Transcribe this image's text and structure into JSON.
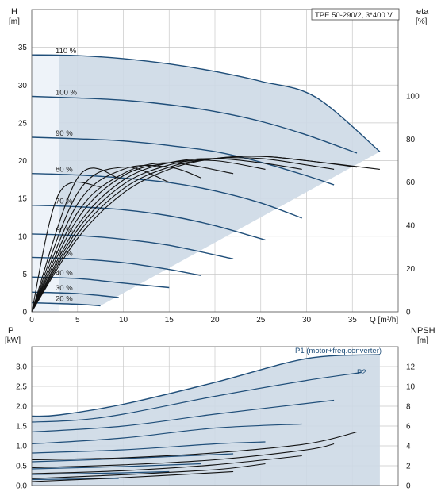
{
  "chart_data": [
    {
      "type": "line",
      "panel": "head",
      "title_box": "TPE 50-290/2, 3*400 V",
      "ylabel": "H",
      "ylabel_unit": "[m]",
      "ylabel_right": "eta",
      "ylabel_right_unit": "[%]",
      "xlabel": "Q [m³/h]",
      "xlim": [
        0,
        40
      ],
      "ylim": [
        0,
        40
      ],
      "ylim_right": [
        0,
        140
      ],
      "x_ticks": [
        "0",
        "5",
        "10",
        "15",
        "20",
        "25",
        "30",
        "35"
      ],
      "y_ticks": [
        "0",
        "5",
        "10",
        "15",
        "20",
        "25",
        "30",
        "35"
      ],
      "y_right_ticks": [
        "0",
        "20",
        "40",
        "60",
        "80",
        "100"
      ],
      "grid": true,
      "envelope_color": "#cdd9e6",
      "curve_color": "#1f4e79",
      "series": [
        {
          "name": "110 %",
          "x": [
            0,
            5,
            10,
            15,
            20,
            25,
            31,
            38
          ],
          "y": [
            34,
            33.9,
            33.5,
            32.8,
            31.8,
            30.5,
            28.4,
            21.2
          ]
        },
        {
          "name": "100 %",
          "x": [
            0,
            5,
            10,
            15,
            20,
            25,
            30,
            35.5
          ],
          "y": [
            28.5,
            28.3,
            28,
            27.4,
            26.5,
            25.2,
            23.4,
            21
          ]
        },
        {
          "name": "90 %",
          "x": [
            0,
            5,
            10,
            15,
            20,
            25,
            30,
            33
          ],
          "y": [
            23.1,
            22.9,
            22.6,
            22,
            21.2,
            19.8,
            18,
            16.8
          ]
        },
        {
          "name": "80 %",
          "x": [
            0,
            5,
            10,
            15,
            20,
            25,
            29.5
          ],
          "y": [
            18.3,
            18.1,
            17.7,
            17.1,
            16,
            14.4,
            12.4
          ]
        },
        {
          "name": "70 %",
          "x": [
            0,
            5,
            10,
            15,
            20,
            25.5
          ],
          "y": [
            14.1,
            13.9,
            13.5,
            12.7,
            11.4,
            9.5
          ]
        },
        {
          "name": "60 %",
          "x": [
            0,
            5,
            10,
            15,
            22
          ],
          "y": [
            10.3,
            10.1,
            9.6,
            8.8,
            7
          ]
        },
        {
          "name": "50 %",
          "x": [
            0,
            5,
            10,
            15,
            18.5
          ],
          "y": [
            7.2,
            7,
            6.5,
            5.6,
            4.8
          ]
        },
        {
          "name": "40 %",
          "x": [
            0,
            5,
            10,
            15
          ],
          "y": [
            4.6,
            4.4,
            3.8,
            3.2
          ]
        },
        {
          "name": "30 %",
          "x": [
            0,
            5,
            9.5
          ],
          "y": [
            2.6,
            2.4,
            1.9
          ]
        },
        {
          "name": "20 %",
          "x": [
            0,
            5,
            7.5
          ],
          "y": [
            1.2,
            1,
            0.8
          ]
        }
      ],
      "efficiency_curves_eta_percent": [
        {
          "x": [
            0,
            5,
            10,
            15,
            20,
            25,
            30,
            38
          ],
          "y": [
            0,
            34,
            55,
            66,
            71,
            72,
            70,
            66
          ]
        },
        {
          "x": [
            0,
            5,
            10,
            15,
            20,
            25,
            30,
            35.5
          ],
          "y": [
            0,
            36,
            57,
            67,
            71,
            72,
            70,
            67
          ]
        },
        {
          "x": [
            0,
            5,
            10,
            15,
            20,
            25,
            30,
            33
          ],
          "y": [
            0,
            38,
            59,
            68,
            71,
            71,
            68,
            66
          ]
        },
        {
          "x": [
            0,
            5,
            10,
            15,
            20,
            25,
            29.5
          ],
          "y": [
            0,
            40,
            61,
            69,
            71,
            69,
            66
          ]
        },
        {
          "x": [
            0,
            5,
            10,
            15,
            20,
            25.5
          ],
          "y": [
            0,
            43,
            63,
            69,
            70,
            66
          ]
        },
        {
          "x": [
            0,
            5,
            10,
            15,
            22
          ],
          "y": [
            0,
            46,
            64,
            69,
            64
          ]
        },
        {
          "x": [
            0,
            5,
            10,
            15,
            18.5
          ],
          "y": [
            0,
            50,
            66,
            67,
            62
          ]
        },
        {
          "x": [
            0,
            5,
            10,
            15
          ],
          "y": [
            0,
            55,
            67,
            60
          ]
        },
        {
          "x": [
            0,
            5,
            9.5
          ],
          "y": [
            0,
            62,
            62
          ]
        },
        {
          "x": [
            0,
            3,
            7.5
          ],
          "y": [
            0,
            55,
            58
          ]
        }
      ]
    },
    {
      "type": "line",
      "panel": "power",
      "ylabel": "P",
      "ylabel_unit": "[kW]",
      "ylabel_right": "NPSH",
      "ylabel_right_unit": "[m]",
      "xlim": [
        0,
        40
      ],
      "ylim": [
        0,
        3.5
      ],
      "ylim_right": [
        0,
        14
      ],
      "y_ticks": [
        "0.0",
        "0.5",
        "1.0",
        "1.5",
        "2.0",
        "2.5",
        "3.0"
      ],
      "y_right_ticks": [
        "0",
        "2",
        "4",
        "6",
        "8",
        "10",
        "12"
      ],
      "grid": true,
      "annotations": [
        "P1 (motor+freq.converter)",
        "P2"
      ],
      "series": [
        {
          "name": "P1 (motor+freq.converter)",
          "x": [
            0,
            3,
            10,
            20,
            30,
            38
          ],
          "y": [
            1.75,
            1.78,
            2.05,
            2.6,
            3.2,
            3.3
          ]
        },
        {
          "name": "P2",
          "x": [
            0,
            5,
            10,
            20,
            30,
            36
          ],
          "y": [
            1.6,
            1.65,
            1.8,
            2.25,
            2.65,
            2.85
          ]
        },
        {
          "x": [
            0,
            10,
            20,
            33
          ],
          "y": [
            1.35,
            1.5,
            1.8,
            2.15
          ]
        },
        {
          "x": [
            0,
            10,
            20,
            29.5
          ],
          "y": [
            1.05,
            1.2,
            1.45,
            1.55
          ]
        },
        {
          "x": [
            0,
            10,
            20,
            25.5
          ],
          "y": [
            0.82,
            0.9,
            1.05,
            1.1
          ]
        },
        {
          "x": [
            0,
            10,
            22
          ],
          "y": [
            0.6,
            0.68,
            0.8
          ]
        },
        {
          "x": [
            0,
            10,
            18.5
          ],
          "y": [
            0.42,
            0.48,
            0.55
          ]
        },
        {
          "x": [
            0,
            10,
            15
          ],
          "y": [
            0.28,
            0.32,
            0.35
          ]
        },
        {
          "x": [
            0,
            9.5
          ],
          "y": [
            0.15,
            0.18
          ]
        }
      ],
      "npsh_curves_m": [
        {
          "x": [
            0,
            10,
            20,
            30,
            35.5
          ],
          "y": [
            2.6,
            2.8,
            3.3,
            4.2,
            5.4
          ]
        },
        {
          "x": [
            0,
            10,
            20,
            30,
            33
          ],
          "y": [
            1.8,
            2.1,
            2.6,
            3.6,
            4.2
          ]
        },
        {
          "x": [
            0,
            10,
            20,
            29.5
          ],
          "y": [
            1.2,
            1.5,
            2.1,
            3
          ]
        },
        {
          "x": [
            0,
            10,
            20,
            25.5
          ],
          "y": [
            0.7,
            1.1,
            1.6,
            2.2
          ]
        },
        {
          "x": [
            0,
            10,
            20,
            22
          ],
          "y": [
            0.4,
            0.8,
            1.3,
            1.4
          ]
        }
      ]
    }
  ]
}
